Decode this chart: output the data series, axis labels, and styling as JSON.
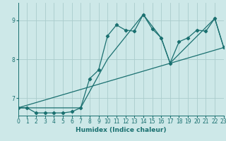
{
  "xlabel": "Humidex (Indice chaleur)",
  "ylabel": "",
  "xlim": [
    0,
    23
  ],
  "ylim": [
    6.55,
    9.45
  ],
  "xticks": [
    0,
    1,
    2,
    3,
    4,
    5,
    6,
    7,
    8,
    9,
    10,
    11,
    12,
    13,
    14,
    15,
    16,
    17,
    18,
    19,
    20,
    21,
    22,
    23
  ],
  "yticks": [
    7,
    8,
    9
  ],
  "bg_color": "#cde8e8",
  "grid_color": "#aacccc",
  "line_color": "#1a7070",
  "line1_x": [
    0,
    1,
    2,
    3,
    4,
    5,
    6,
    7,
    8,
    9,
    10,
    11,
    12,
    13,
    14,
    15,
    16,
    17,
    18,
    19,
    20,
    21,
    22,
    23
  ],
  "line1_y": [
    6.75,
    6.75,
    6.62,
    6.62,
    6.62,
    6.62,
    6.65,
    6.75,
    7.5,
    7.72,
    8.6,
    8.88,
    8.75,
    8.72,
    9.15,
    8.78,
    8.55,
    7.9,
    8.45,
    8.55,
    8.75,
    8.72,
    9.05,
    8.3
  ],
  "line2_x": [
    0,
    23
  ],
  "line2_y": [
    6.75,
    8.3
  ],
  "line3_x": [
    0,
    7,
    10,
    14,
    16,
    17,
    22,
    23
  ],
  "line3_y": [
    6.75,
    6.75,
    8.0,
    9.15,
    8.55,
    7.9,
    9.05,
    8.3
  ]
}
